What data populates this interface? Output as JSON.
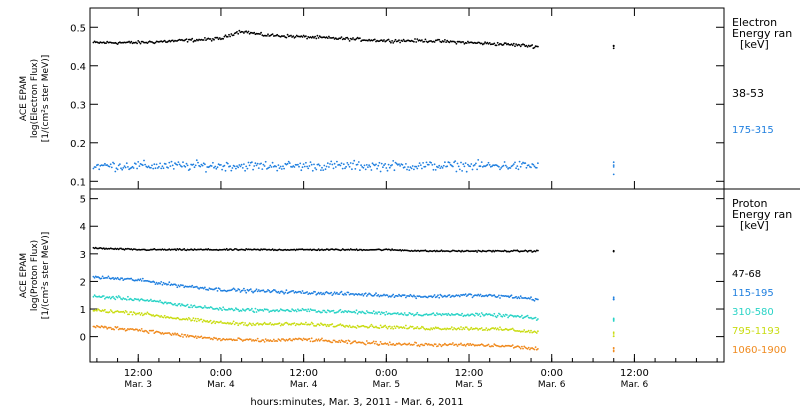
{
  "xaxis": {
    "label": "hours:minutes, Mar.  3, 2011 - Mar.  6, 2011",
    "range": [
      "2011-03-03T05:00",
      "2011-03-07T01:00"
    ],
    "ticks": [
      {
        "time": "2011-03-03T12:00",
        "line1": "12:00",
        "line2": "Mar. 3"
      },
      {
        "time": "2011-03-04T00:00",
        "line1": "0:00",
        "line2": "Mar. 4"
      },
      {
        "time": "2011-03-04T12:00",
        "line1": "12:00",
        "line2": "Mar. 4"
      },
      {
        "time": "2011-03-05T00:00",
        "line1": "0:00",
        "line2": "Mar. 5"
      },
      {
        "time": "2011-03-05T12:00",
        "line1": "12:00",
        "line2": "Mar. 5"
      },
      {
        "time": "2011-03-06T00:00",
        "line1": "0:00",
        "line2": "Mar. 6"
      },
      {
        "time": "2011-03-06T12:00",
        "line1": "12:00",
        "line2": "Mar. 6"
      }
    ]
  },
  "chart_data": [
    {
      "type": "scatter",
      "ylabel": [
        "ACE EPAM",
        "log(Electron Flux)",
        "[1/(cm²s ster MeV)]"
      ],
      "ylim": [
        0.08,
        0.55
      ],
      "yticks": [
        "0.1",
        "0.2",
        "0.3",
        "0.4",
        "0.5"
      ],
      "legend_title": [
        "Electron",
        "Energy ran",
        "[keV]"
      ],
      "series": [
        {
          "name": "38-53",
          "color": "#000000",
          "x": [
            "2011-03-03T06:00",
            "2011-03-03T12:00",
            "2011-03-03T18:00",
            "2011-03-04T00:00",
            "2011-03-04T02:00",
            "2011-03-04T03:00",
            "2011-03-04T06:00",
            "2011-03-04T12:00",
            "2011-03-04T18:00",
            "2011-03-05T00:00",
            "2011-03-05T06:00",
            "2011-03-05T12:00",
            "2011-03-05T18:00",
            "2011-03-05T22:00",
            "2011-03-06T09:00"
          ],
          "y": [
            0.46,
            0.46,
            0.465,
            0.47,
            0.485,
            0.49,
            0.48,
            0.475,
            0.47,
            0.465,
            0.465,
            0.46,
            0.455,
            0.45,
            0.45
          ]
        },
        {
          "name": "175-315",
          "color": "#1f7fdf",
          "x": [
            "2011-03-03T06:00",
            "2011-03-03T12:00",
            "2011-03-03T18:00",
            "2011-03-04T00:00",
            "2011-03-04T06:00",
            "2011-03-04T12:00",
            "2011-03-04T18:00",
            "2011-03-05T00:00",
            "2011-03-05T06:00",
            "2011-03-05T12:00",
            "2011-03-05T18:00",
            "2011-03-05T22:00",
            "2011-03-06T09:00"
          ],
          "y": [
            0.14,
            0.14,
            0.14,
            0.14,
            0.14,
            0.14,
            0.14,
            0.14,
            0.14,
            0.14,
            0.14,
            0.14,
            0.14
          ]
        }
      ]
    },
    {
      "type": "scatter",
      "ylabel": [
        "ACE EPAM",
        "log(Proton Flux)",
        "[1/(cm²s ster MeV)]"
      ],
      "ylim": [
        -1,
        5.3
      ],
      "yticks": [
        "0",
        "1",
        "2",
        "3",
        "4",
        "5"
      ],
      "legend_title": [
        "Proton",
        "Energy ran",
        "[keV]"
      ],
      "series": [
        {
          "name": "47-68",
          "color": "#000000",
          "x": [
            "2011-03-03T06:00",
            "2011-03-03T12:00",
            "2011-03-03T18:00",
            "2011-03-04T00:00",
            "2011-03-04T06:00",
            "2011-03-04T12:00",
            "2011-03-04T18:00",
            "2011-03-05T00:00",
            "2011-03-05T06:00",
            "2011-03-05T12:00",
            "2011-03-05T18:00",
            "2011-03-05T22:00",
            "2011-03-06T09:00"
          ],
          "y": [
            3.2,
            3.15,
            3.15,
            3.15,
            3.15,
            3.15,
            3.15,
            3.15,
            3.1,
            3.1,
            3.1,
            3.1,
            3.1
          ]
        },
        {
          "name": "115-195",
          "color": "#1f7fdf",
          "x": [
            "2011-03-03T06:00",
            "2011-03-03T12:00",
            "2011-03-03T18:00",
            "2011-03-04T00:00",
            "2011-03-04T06:00",
            "2011-03-04T12:00",
            "2011-03-04T18:00",
            "2011-03-05T00:00",
            "2011-03-05T06:00",
            "2011-03-05T12:00",
            "2011-03-05T18:00",
            "2011-03-05T22:00",
            "2011-03-06T09:00"
          ],
          "y": [
            2.15,
            2.05,
            1.85,
            1.7,
            1.65,
            1.6,
            1.55,
            1.5,
            1.45,
            1.5,
            1.45,
            1.35,
            1.35
          ]
        },
        {
          "name": "310-580",
          "color": "#29d3c6",
          "x": [
            "2011-03-03T06:00",
            "2011-03-03T12:00",
            "2011-03-03T18:00",
            "2011-03-04T00:00",
            "2011-03-04T06:00",
            "2011-03-04T12:00",
            "2011-03-04T18:00",
            "2011-03-05T00:00",
            "2011-03-05T06:00",
            "2011-03-05T12:00",
            "2011-03-05T18:00",
            "2011-03-05T22:00",
            "2011-03-06T09:00"
          ],
          "y": [
            1.45,
            1.35,
            1.15,
            1.0,
            0.95,
            0.95,
            0.9,
            0.85,
            0.8,
            0.8,
            0.75,
            0.65,
            0.6
          ]
        },
        {
          "name": "795-1193",
          "color": "#c9dc12",
          "x": [
            "2011-03-03T06:00",
            "2011-03-03T12:00",
            "2011-03-03T18:00",
            "2011-03-04T00:00",
            "2011-03-04T06:00",
            "2011-03-04T12:00",
            "2011-03-04T18:00",
            "2011-03-05T00:00",
            "2011-03-05T06:00",
            "2011-03-05T12:00",
            "2011-03-05T18:00",
            "2011-03-05T22:00",
            "2011-03-06T09:00"
          ],
          "y": [
            0.95,
            0.85,
            0.65,
            0.5,
            0.45,
            0.45,
            0.4,
            0.35,
            0.3,
            0.3,
            0.25,
            0.15,
            0.1
          ]
        },
        {
          "name": "1060-1900",
          "color": "#f08a1e",
          "x": [
            "2011-03-03T06:00",
            "2011-03-03T12:00",
            "2011-03-03T18:00",
            "2011-03-04T00:00",
            "2011-03-04T06:00",
            "2011-03-04T12:00",
            "2011-03-04T18:00",
            "2011-03-05T00:00",
            "2011-03-05T06:00",
            "2011-03-05T12:00",
            "2011-03-05T18:00",
            "2011-03-05T22:00",
            "2011-03-06T09:00"
          ],
          "y": [
            0.35,
            0.25,
            0.05,
            -0.1,
            -0.15,
            -0.1,
            -0.2,
            -0.25,
            -0.3,
            -0.3,
            -0.35,
            -0.45,
            -0.5
          ]
        }
      ]
    }
  ]
}
